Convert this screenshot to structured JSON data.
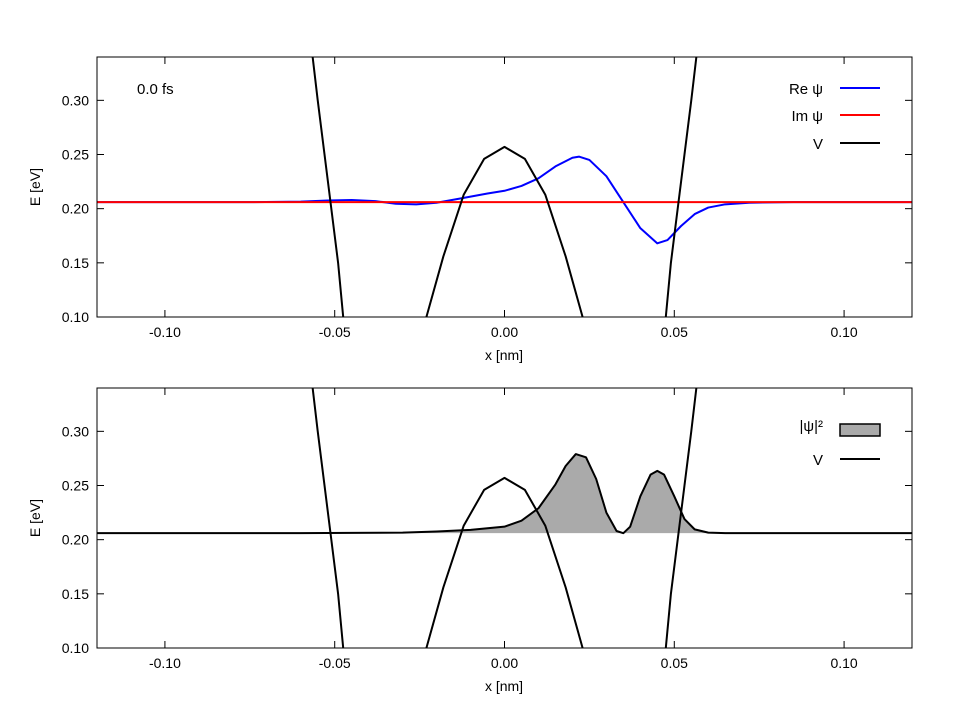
{
  "chart_data": [
    {
      "type": "line",
      "xlabel": "x [nm]",
      "ylabel": "E [eV]",
      "xlim": [
        -0.12,
        0.12
      ],
      "ylim": [
        0.1,
        0.34
      ],
      "xticks": [
        -0.1,
        -0.05,
        0.0,
        0.05,
        0.1
      ],
      "xtick_labels": [
        "-0.10",
        "-0.05",
        "0.00",
        "0.05",
        "0.10"
      ],
      "yticks": [
        0.1,
        0.15,
        0.2,
        0.25,
        0.3
      ],
      "ytick_labels": [
        "0.10",
        "0.15",
        "0.20",
        "0.25",
        "0.30"
      ],
      "grid": false,
      "legend_position": "top-right",
      "annotation": "0.0 fs",
      "series": [
        {
          "name": "Re ψ",
          "color": "#0000ff",
          "x": [
            -0.12,
            -0.075,
            -0.06,
            -0.052,
            -0.045,
            -0.038,
            -0.032,
            -0.026,
            -0.02,
            -0.012,
            -0.005,
            0.0,
            0.005,
            0.01,
            0.015,
            0.02,
            0.022,
            0.025,
            0.03,
            0.035,
            0.04,
            0.045,
            0.048,
            0.052,
            0.056,
            0.06,
            0.065,
            0.072,
            0.085,
            0.12
          ],
          "y": [
            0.206,
            0.206,
            0.2065,
            0.2075,
            0.208,
            0.207,
            0.2045,
            0.204,
            0.2055,
            0.21,
            0.214,
            0.2165,
            0.221,
            0.228,
            0.239,
            0.247,
            0.248,
            0.245,
            0.23,
            0.206,
            0.182,
            0.168,
            0.171,
            0.184,
            0.195,
            0.201,
            0.204,
            0.2055,
            0.206,
            0.206
          ]
        },
        {
          "name": "Im ψ",
          "color": "#ff0000",
          "x": [
            -0.12,
            0.12
          ],
          "y": [
            0.206,
            0.206
          ]
        },
        {
          "name": "V",
          "color": "#000000",
          "x": [
            -0.0565,
            -0.055,
            -0.053,
            -0.051,
            -0.049,
            -0.0475,
            null,
            -0.023,
            -0.018,
            -0.012,
            -0.006,
            0.0,
            0.006,
            0.012,
            0.018,
            0.023,
            null,
            0.0475,
            0.049,
            0.051,
            0.053,
            0.055,
            0.0565
          ],
          "y": [
            0.34,
            0.3,
            0.25,
            0.2,
            0.15,
            0.1,
            null,
            0.1,
            0.156,
            0.213,
            0.246,
            0.257,
            0.246,
            0.213,
            0.156,
            0.1,
            null,
            0.1,
            0.15,
            0.2,
            0.25,
            0.3,
            0.34
          ]
        }
      ]
    },
    {
      "type": "area",
      "xlabel": "x [nm]",
      "ylabel": "E [eV]",
      "xlim": [
        -0.12,
        0.12
      ],
      "ylim": [
        0.1,
        0.34
      ],
      "xticks": [
        -0.1,
        -0.05,
        0.0,
        0.05,
        0.1
      ],
      "xtick_labels": [
        "-0.10",
        "-0.05",
        "0.00",
        "0.05",
        "0.10"
      ],
      "yticks": [
        0.1,
        0.15,
        0.2,
        0.25,
        0.3
      ],
      "ytick_labels": [
        "0.10",
        "0.15",
        "0.20",
        "0.25",
        "0.30"
      ],
      "grid": false,
      "legend_position": "top-right",
      "baseline": 0.206,
      "series": [
        {
          "name": "|ψ|²",
          "color": "#000000",
          "fill": "#aaaaaa",
          "x": [
            -0.12,
            -0.06,
            -0.045,
            -0.03,
            -0.02,
            -0.01,
            -0.005,
            0.0,
            0.005,
            0.01,
            0.015,
            0.018,
            0.021,
            0.024,
            0.027,
            0.03,
            0.033,
            0.035,
            0.037,
            0.04,
            0.043,
            0.045,
            0.047,
            0.05,
            0.053,
            0.056,
            0.06,
            0.065,
            0.12
          ],
          "y": [
            0.206,
            0.206,
            0.2063,
            0.2065,
            0.2075,
            0.209,
            0.2105,
            0.212,
            0.2175,
            0.229,
            0.251,
            0.268,
            0.279,
            0.276,
            0.256,
            0.225,
            0.208,
            0.206,
            0.212,
            0.24,
            0.26,
            0.2635,
            0.26,
            0.24,
            0.219,
            0.2095,
            0.2065,
            0.206,
            0.206
          ]
        },
        {
          "name": "V",
          "color": "#000000",
          "x": [
            -0.0565,
            -0.055,
            -0.053,
            -0.051,
            -0.049,
            -0.0475,
            null,
            -0.023,
            -0.018,
            -0.012,
            -0.006,
            0.0,
            0.006,
            0.012,
            0.018,
            0.023,
            null,
            0.0475,
            0.049,
            0.051,
            0.053,
            0.055,
            0.0565
          ],
          "y": [
            0.34,
            0.3,
            0.25,
            0.2,
            0.15,
            0.1,
            null,
            0.1,
            0.156,
            0.213,
            0.246,
            0.257,
            0.246,
            0.213,
            0.156,
            0.1,
            null,
            0.1,
            0.15,
            0.2,
            0.25,
            0.3,
            0.34
          ]
        }
      ]
    }
  ]
}
